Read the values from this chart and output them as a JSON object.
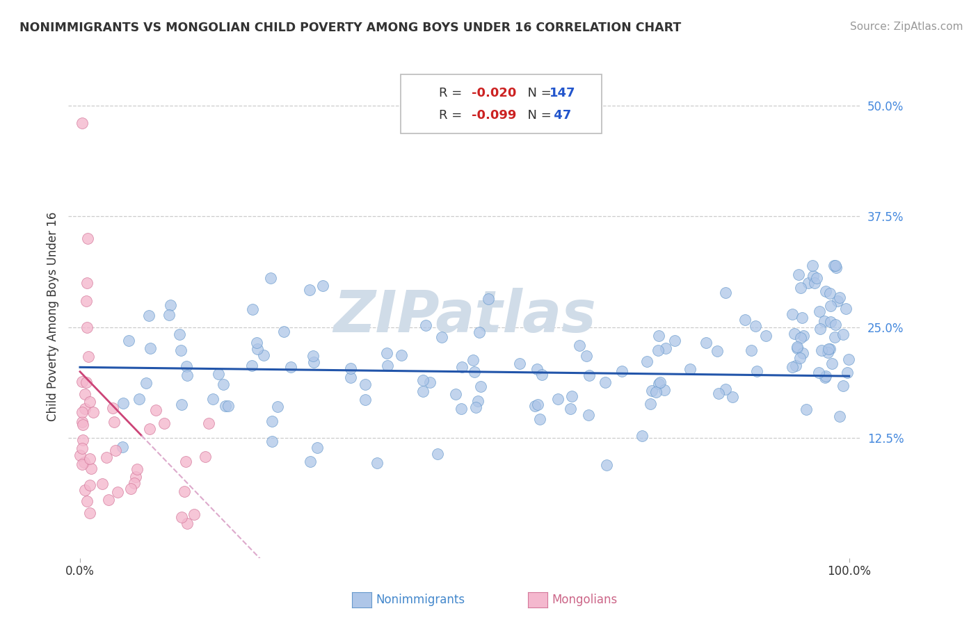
{
  "title": "NONIMMIGRANTS VS MONGOLIAN CHILD POVERTY AMONG BOYS UNDER 16 CORRELATION CHART",
  "source": "Source: ZipAtlas.com",
  "ylabel": "Child Poverty Among Boys Under 16",
  "nonimmigrant_color": "#aec6e8",
  "nonimmigrant_edge": "#6699cc",
  "mongolian_color": "#f4b8ce",
  "mongolian_edge": "#d4789a",
  "trendline_nonimmigrant": "#2255aa",
  "trendline_mongolian": "#cc4477",
  "trendline_mongolian_dashed": "#ddaacc",
  "watermark_color": "#d0dce8",
  "background_color": "#ffffff",
  "grid_color": "#cccccc",
  "ytick_color": "#4488dd",
  "xtick_color": "#333333",
  "title_color": "#333333",
  "source_color": "#999999",
  "legend_text_color": "#333333",
  "legend_r_color": "#cc2222",
  "legend_n_color": "#2255cc",
  "bottom_legend_blue": "#4488cc",
  "bottom_legend_pink": "#cc6688",
  "xlim": [
    0.0,
    1.0
  ],
  "ylim": [
    0.0,
    0.5
  ],
  "yticks": [
    0.125,
    0.25,
    0.375,
    0.5
  ],
  "ytick_labels": [
    "12.5%",
    "25.0%",
    "37.5%",
    "50.0%"
  ]
}
